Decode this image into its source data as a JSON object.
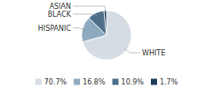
{
  "chart_data": {
    "type": "pie",
    "categories": [
      "WHITE",
      "HISPANIC",
      "BLACK",
      "ASIAN"
    ],
    "values": [
      70.7,
      16.8,
      10.9,
      1.7
    ],
    "value_labels": [
      "70.7%",
      "16.8%",
      "10.9%",
      "1.7%"
    ],
    "colors": [
      "#d6dce4",
      "#8eaabf",
      "#4d6f8a",
      "#1f3d5c"
    ],
    "legend": "bottom"
  }
}
